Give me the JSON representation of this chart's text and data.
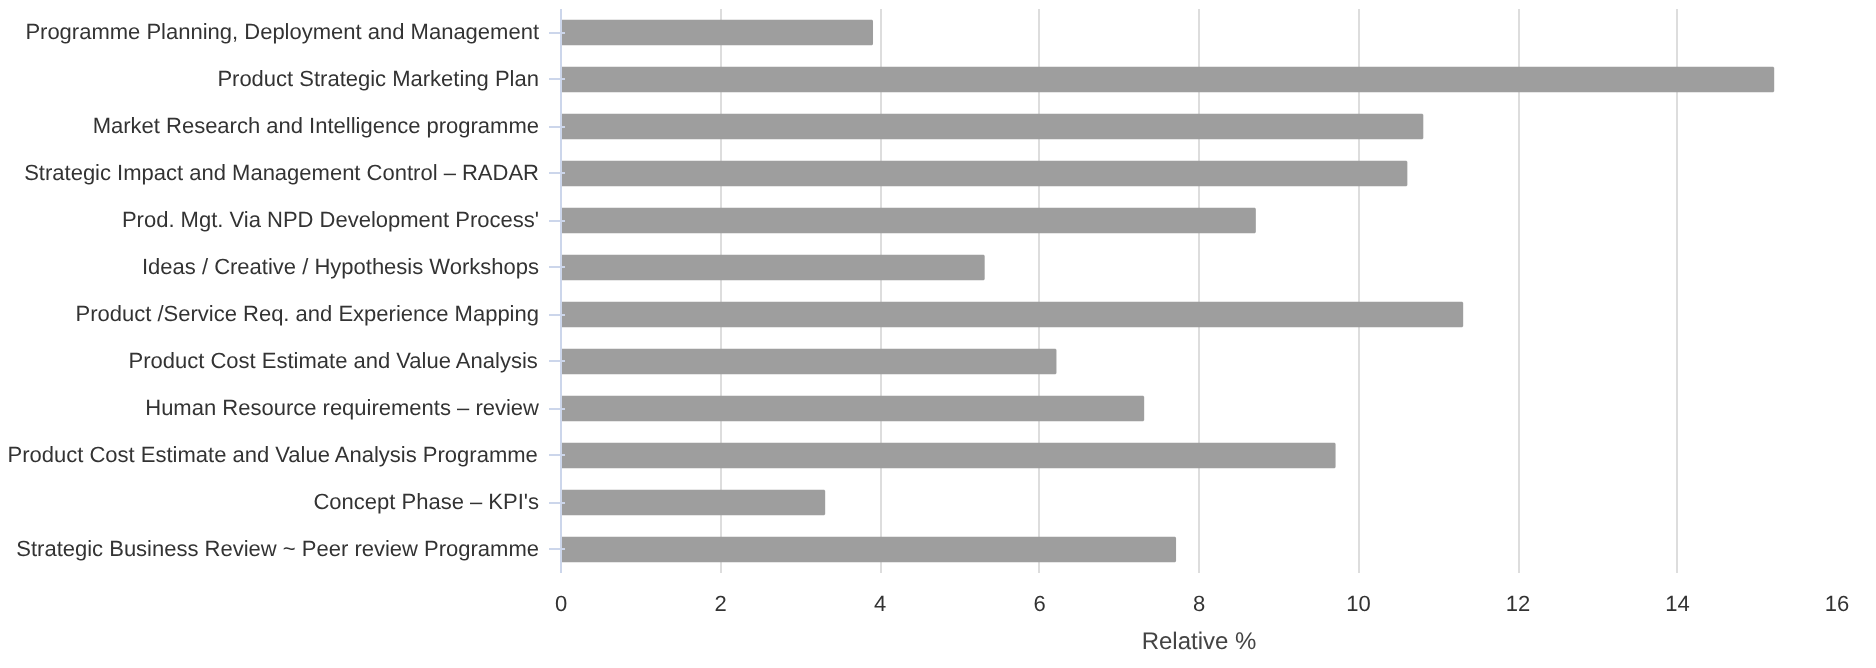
{
  "chart_data": {
    "type": "bar",
    "orientation": "horizontal",
    "xlabel": "Relative %",
    "categories": [
      "Programme Planning, Deployment and Management",
      "Product Strategic Marketing Plan",
      "Market Research and Intelligence programme",
      "Strategic Impact and Management Control – RADAR",
      "Prod. Mgt. Via NPD Development Process'",
      "Ideas / Creative / Hypothesis Workshops",
      "Product /Service Req. and Experience Mapping",
      "Product Cost Estimate and Value Analysis",
      "Human Resource requirements – review",
      "Product Cost Estimate and Value Analysis Programme",
      "Concept Phase – KPI's",
      "Strategic Business Review ~ Peer review Programme"
    ],
    "values": [
      3.9,
      15.2,
      10.8,
      10.6,
      8.7,
      5.3,
      11.3,
      6.2,
      7.3,
      9.7,
      3.3,
      7.7
    ],
    "color": "#9e9e9e",
    "xlim": [
      0,
      16
    ],
    "xticks": [
      0,
      2,
      4,
      6,
      8,
      10,
      12,
      14,
      16
    ],
    "grid": "x"
  }
}
